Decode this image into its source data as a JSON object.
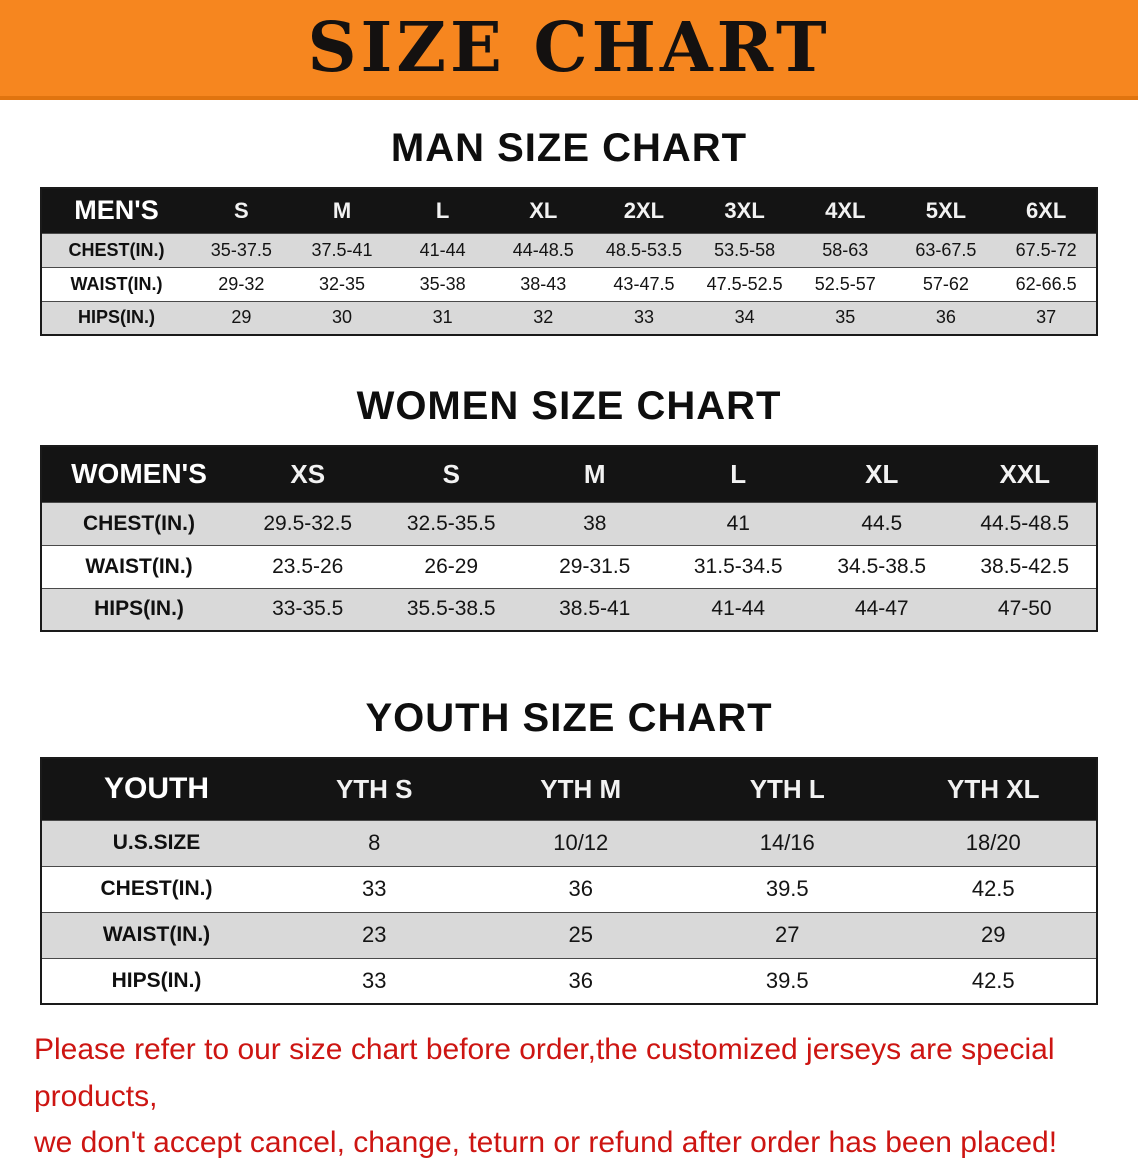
{
  "banner": {
    "title": "SIZE CHART",
    "background_color": "#f6861f",
    "text_color": "#141110"
  },
  "sections": [
    {
      "id": "men",
      "heading": "MAN SIZE CHART",
      "table": {
        "header": [
          "MEN'S",
          "S",
          "M",
          "L",
          "XL",
          "2XL",
          "3XL",
          "4XL",
          "5XL",
          "6XL"
        ],
        "rows": [
          {
            "label": "CHEST(IN.)",
            "values": [
              "35-37.5",
              "37.5-41",
              "41-44",
              "44-48.5",
              "48.5-53.5",
              "53.5-58",
              "58-63",
              "63-67.5",
              "67.5-72"
            ]
          },
          {
            "label": "WAIST(IN.)",
            "values": [
              "29-32",
              "32-35",
              "35-38",
              "38-43",
              "43-47.5",
              "47.5-52.5",
              "52.5-57",
              "57-62",
              "62-66.5"
            ]
          },
          {
            "label": "HIPS(IN.)",
            "values": [
              "29",
              "30",
              "31",
              "32",
              "33",
              "34",
              "35",
              "36",
              "37"
            ]
          }
        ]
      }
    },
    {
      "id": "women",
      "heading": "WOMEN SIZE CHART",
      "table": {
        "header": [
          "WOMEN'S",
          "XS",
          "S",
          "M",
          "L",
          "XL",
          "XXL"
        ],
        "rows": [
          {
            "label": "CHEST(IN.)",
            "values": [
              "29.5-32.5",
              "32.5-35.5",
              "38",
              "41",
              "44.5",
              "44.5-48.5"
            ]
          },
          {
            "label": "WAIST(IN.)",
            "values": [
              "23.5-26",
              "26-29",
              "29-31.5",
              "31.5-34.5",
              "34.5-38.5",
              "38.5-42.5"
            ]
          },
          {
            "label": "HIPS(IN.)",
            "values": [
              "33-35.5",
              "35.5-38.5",
              "38.5-41",
              "41-44",
              "44-47",
              "47-50"
            ]
          }
        ]
      }
    },
    {
      "id": "youth",
      "heading": "YOUTH SIZE CHART",
      "table": {
        "header": [
          "YOUTH",
          "YTH S",
          "YTH M",
          "YTH L",
          "YTH XL"
        ],
        "rows": [
          {
            "label": "U.S.SIZE",
            "values": [
              "8",
              "10/12",
              "14/16",
              "18/20"
            ]
          },
          {
            "label": "CHEST(IN.)",
            "values": [
              "33",
              "36",
              "39.5",
              "42.5"
            ]
          },
          {
            "label": "WAIST(IN.)",
            "values": [
              "23",
              "25",
              "27",
              "29"
            ]
          },
          {
            "label": "HIPS(IN.)",
            "values": [
              "33",
              "36",
              "39.5",
              "42.5"
            ]
          }
        ]
      }
    }
  ],
  "disclaimer": {
    "text_color": "#cd1512",
    "lines": [
      "Please refer to our size chart before order,the customized jerseys are special products,",
      "we don't accept cancel, change, teturn or refund after order has been placed!"
    ]
  }
}
